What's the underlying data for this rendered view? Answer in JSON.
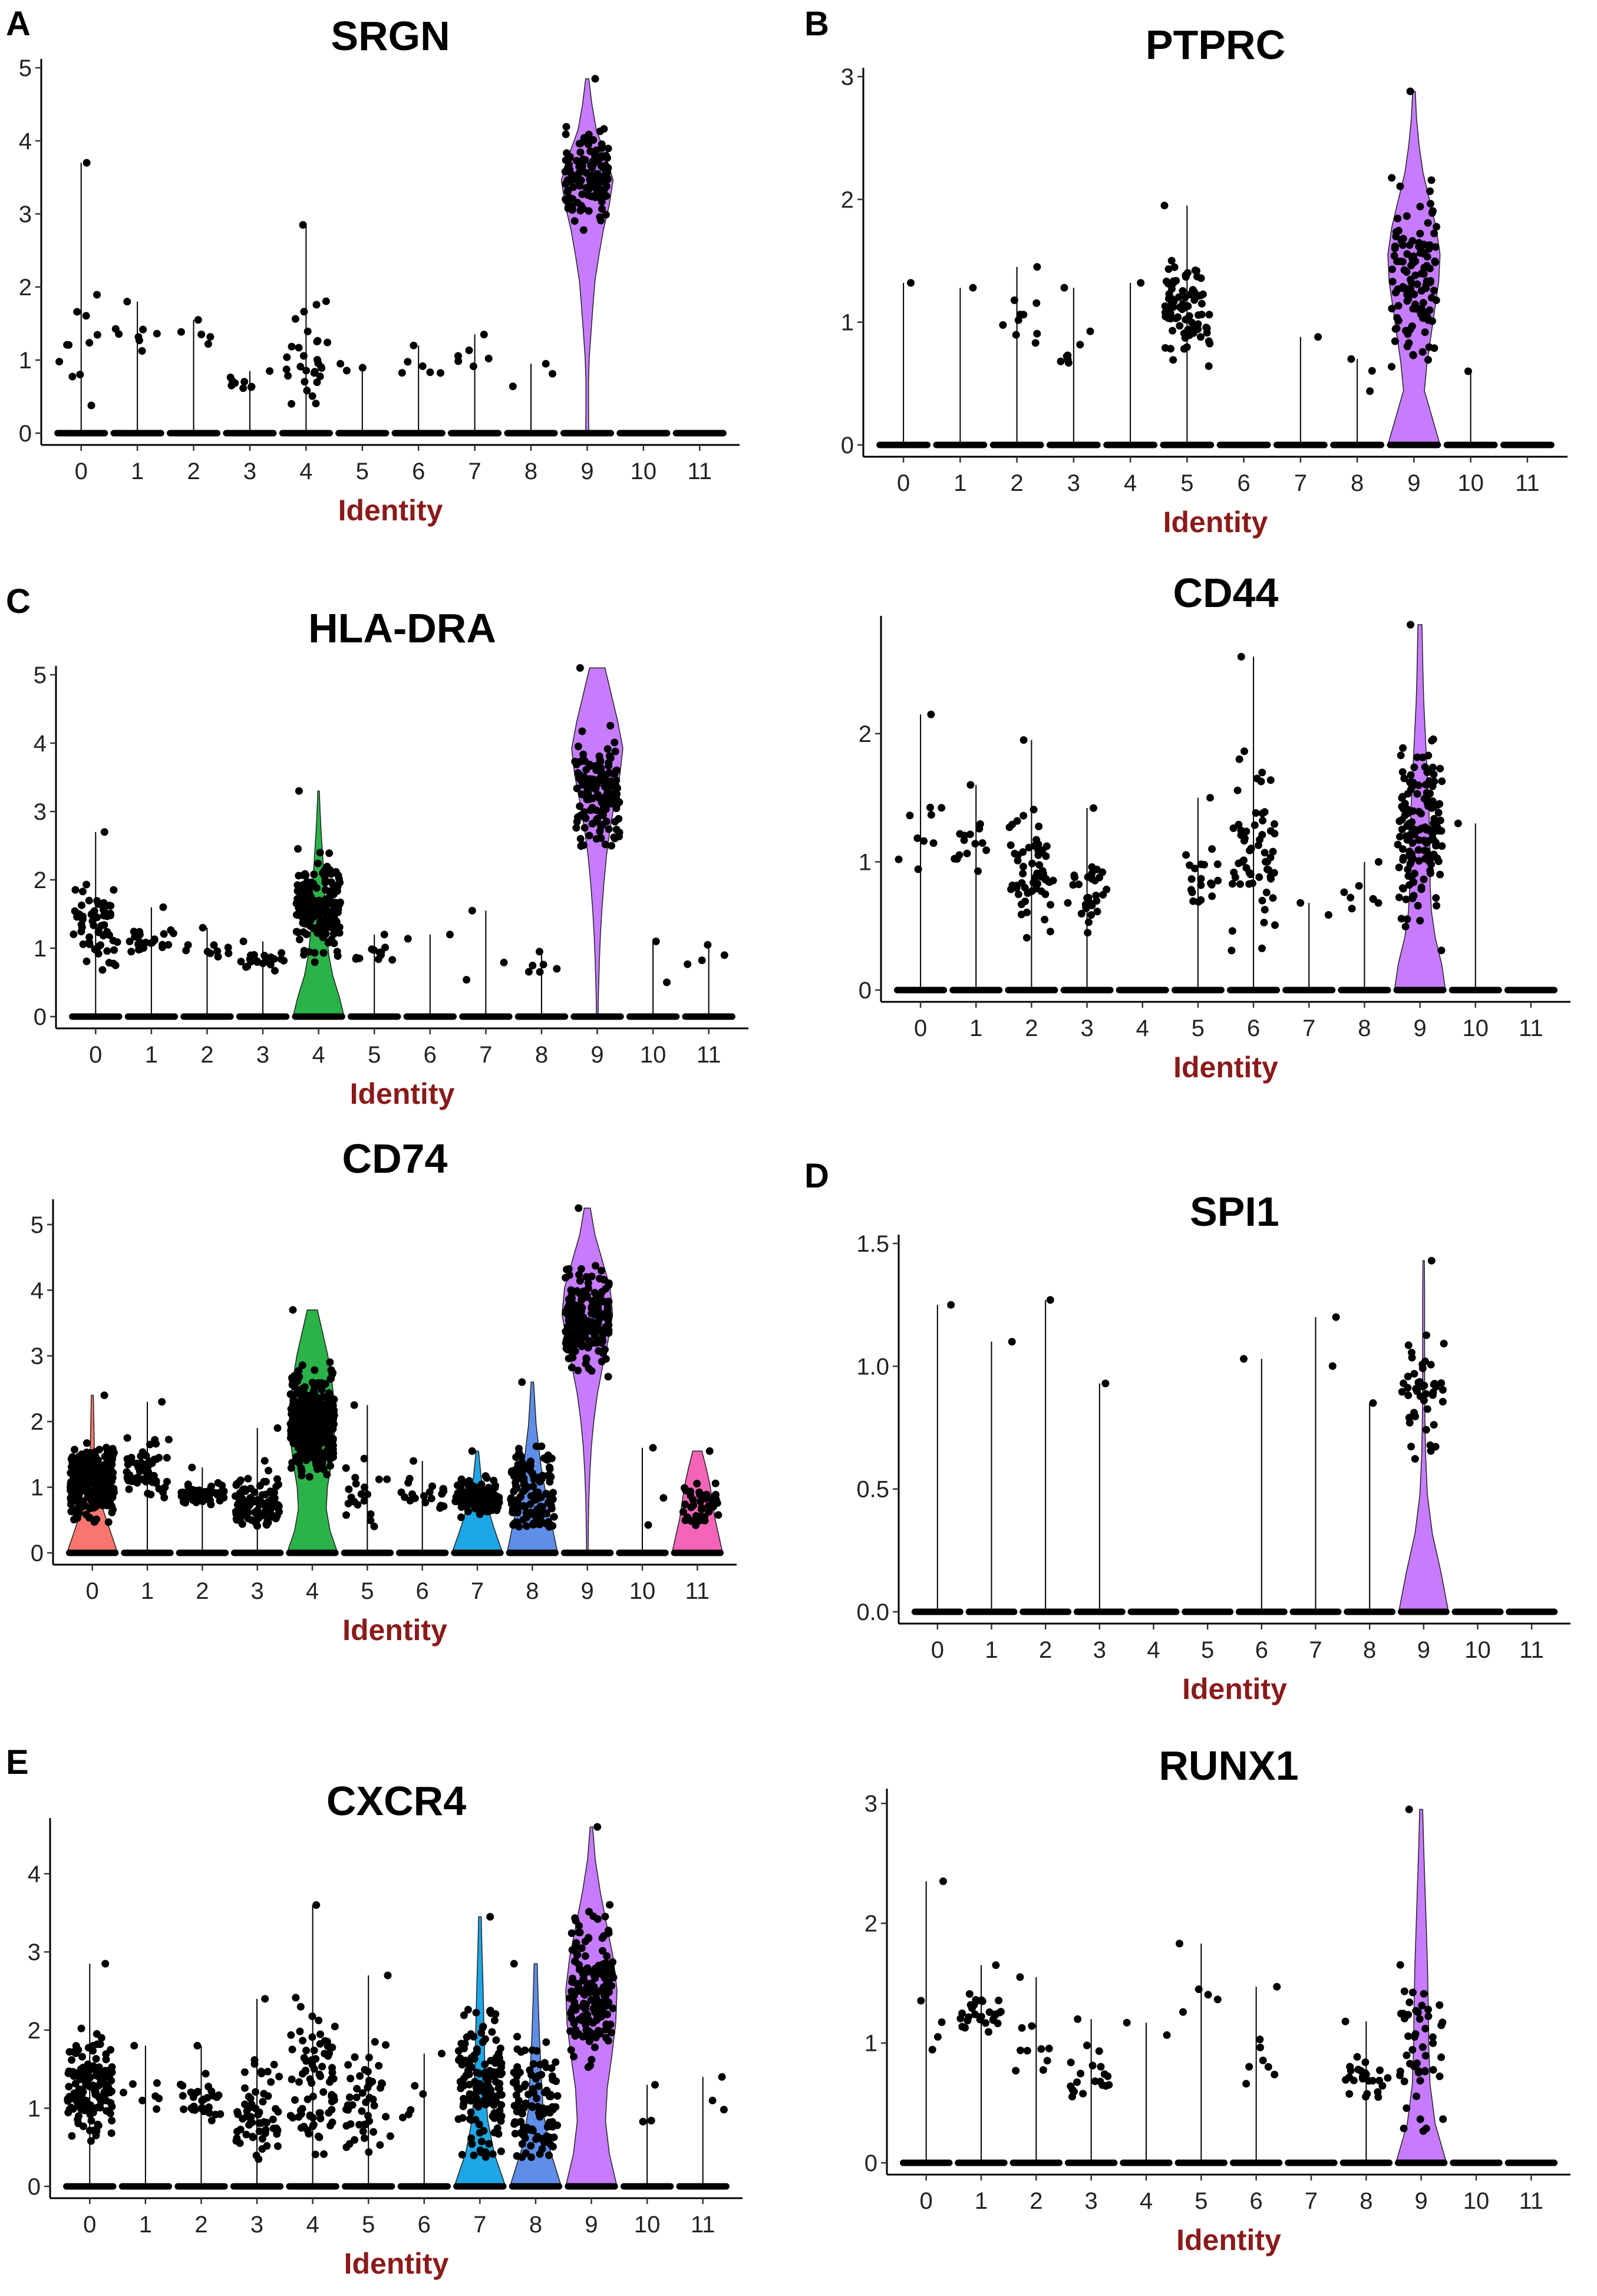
{
  "figure": {
    "panel_letters": [
      "A",
      "B",
      "C",
      "D",
      "E"
    ],
    "colors": {
      "violin_9": "#c77cff",
      "c0": "#f8766d",
      "c4": "#2bb34a",
      "c7": "#1ea7e6",
      "c8": "#5e8ee8",
      "c11": "#f564b8",
      "point": "#000000",
      "xlabel": "#8b1a1a"
    }
  },
  "chart_data": [
    {
      "gene": "SRGN",
      "type": "violin",
      "panel_letter": "A",
      "title": "SRGN",
      "xlabel": "Identity",
      "categories": [
        "0",
        "1",
        "2",
        "3",
        "4",
        "5",
        "6",
        "7",
        "8",
        "9",
        "10",
        "11"
      ],
      "ylim": [
        0,
        5
      ],
      "yticks": [
        "0",
        "1",
        "2",
        "3",
        "4",
        "5"
      ],
      "max_values": [
        3.7,
        1.8,
        1.55,
        0.85,
        2.85,
        0.95,
        1.2,
        1.35,
        0.95,
        4.85,
        0,
        0
      ],
      "nonzero_points": [
        12,
        8,
        5,
        9,
        30,
        3,
        6,
        6,
        3,
        130,
        0,
        0
      ],
      "typical_value": [
        1.2,
        1.3,
        1.3,
        0.7,
        0.95,
        0.9,
        0.9,
        1.0,
        0.7,
        3.5,
        0,
        0
      ],
      "violins": [
        {
          "category": "9",
          "color_key": "violin_9",
          "shape": [
            0.06,
            0.05,
            0.05,
            0.08,
            0.15,
            0.22,
            0.3,
            0.45,
            0.62,
            0.85,
            1.0,
            0.7,
            0.35,
            0.18,
            0.06
          ]
        }
      ]
    },
    {
      "gene": "PTPRC",
      "type": "violin",
      "panel_letter": "B",
      "title": "PTPRC",
      "xlabel": "Identity",
      "categories": [
        "0",
        "1",
        "2",
        "3",
        "4",
        "5",
        "6",
        "7",
        "8",
        "9",
        "10",
        "11"
      ],
      "ylim": [
        0,
        3
      ],
      "yticks": [
        "0",
        "1",
        "2",
        "3"
      ],
      "max_values": [
        1.32,
        1.28,
        1.45,
        1.28,
        1.32,
        1.95,
        0,
        0.88,
        0.7,
        2.88,
        0.6,
        0
      ],
      "nonzero_points": [
        1,
        1,
        10,
        8,
        1,
        80,
        0,
        1,
        3,
        120,
        1,
        0
      ],
      "typical_value": [
        1.32,
        1.28,
        0.95,
        0.75,
        1.32,
        1.1,
        0,
        0.88,
        0.5,
        1.4,
        0.6,
        0
      ],
      "violins": [
        {
          "category": "9",
          "color_key": "violin_9",
          "shape": [
            1.0,
            0.7,
            0.4,
            0.5,
            0.65,
            0.8,
            0.95,
            1.0,
            0.85,
            0.6,
            0.35,
            0.2,
            0.1,
            0.05
          ]
        }
      ]
    },
    {
      "gene": "HLA-DRA",
      "type": "violin",
      "panel_letter": "C",
      "title": "HLA-DRA",
      "xlabel": "Identity",
      "categories": [
        "0",
        "1",
        "2",
        "3",
        "4",
        "5",
        "6",
        "7",
        "8",
        "9",
        "10",
        "11"
      ],
      "ylim": [
        0,
        5
      ],
      "yticks": [
        "0",
        "1",
        "2",
        "3",
        "4",
        "5"
      ],
      "max_values": [
        2.7,
        1.6,
        1.3,
        1.1,
        3.3,
        1.2,
        1.2,
        1.55,
        0.95,
        5.1,
        1.1,
        1.05
      ],
      "nonzero_points": [
        60,
        25,
        10,
        20,
        200,
        12,
        2,
        3,
        6,
        150,
        2,
        4
      ],
      "typical_value": [
        1.3,
        1.1,
        1.0,
        0.8,
        1.6,
        0.9,
        1.2,
        0.7,
        0.7,
        3.3,
        0.6,
        0.8
      ],
      "violins": [
        {
          "category": "4",
          "color_key": "c4",
          "shape": [
            1.0,
            0.8,
            0.55,
            0.4,
            0.32,
            0.28,
            0.24,
            0.2,
            0.15,
            0.1,
            0.06,
            0.03
          ]
        },
        {
          "category": "9",
          "color_key": "violin_9",
          "shape": [
            0.03,
            0.05,
            0.08,
            0.12,
            0.18,
            0.26,
            0.36,
            0.5,
            0.68,
            0.88,
            1.0,
            0.8,
            0.55,
            0.3
          ]
        }
      ]
    },
    {
      "gene": "CD44",
      "type": "violin",
      "panel_letter": "",
      "title": "CD44",
      "xlabel": "Identity",
      "categories": [
        "0",
        "1",
        "2",
        "3",
        "4",
        "5",
        "6",
        "7",
        "8",
        "9",
        "10",
        "11"
      ],
      "ylim": [
        0,
        2.85
      ],
      "yticks": [
        "0",
        "1",
        "2"
      ],
      "max_values": [
        2.15,
        1.6,
        1.95,
        1.42,
        0,
        1.5,
        2.6,
        0.68,
        1.0,
        2.85,
        1.3,
        0
      ],
      "nonzero_points": [
        10,
        15,
        60,
        30,
        0,
        20,
        60,
        2,
        8,
        150,
        1,
        0
      ],
      "typical_value": [
        1.1,
        1.1,
        0.95,
        0.75,
        0,
        0.9,
        1.05,
        0.66,
        0.7,
        1.2,
        1.3,
        0
      ],
      "violins": [
        {
          "category": "9",
          "color_key": "violin_9",
          "shape": [
            1.0,
            0.85,
            0.6,
            0.45,
            0.4,
            0.4,
            0.38,
            0.35,
            0.3,
            0.25,
            0.2,
            0.15,
            0.12,
            0.1,
            0.08
          ]
        }
      ]
    },
    {
      "gene": "CD74",
      "type": "violin",
      "panel_letter": "",
      "title": "CD74",
      "xlabel": "Identity",
      "categories": [
        "0",
        "1",
        "2",
        "3",
        "4",
        "5",
        "6",
        "7",
        "8",
        "9",
        "10",
        "11"
      ],
      "ylim": [
        0,
        5.25
      ],
      "yticks": [
        "0",
        "1",
        "2",
        "3",
        "4",
        "5"
      ],
      "max_values": [
        2.4,
        2.3,
        1.3,
        1.9,
        3.7,
        2.25,
        1.4,
        1.55,
        2.6,
        5.25,
        1.6,
        1.55
      ],
      "nonzero_points": [
        300,
        60,
        50,
        90,
        400,
        20,
        20,
        110,
        120,
        200,
        3,
        40
      ],
      "typical_value": [
        1.1,
        1.3,
        0.9,
        0.8,
        2.0,
        0.9,
        0.9,
        0.85,
        0.85,
        3.5,
        0.7,
        0.7
      ],
      "violins": [
        {
          "category": "0",
          "color_key": "c0",
          "shape": [
            1.0,
            0.3,
            0.08,
            0.04
          ]
        },
        {
          "category": "4",
          "color_key": "c4",
          "shape": [
            1.0,
            0.7,
            0.55,
            0.6,
            0.75,
            0.85,
            0.9,
            0.85,
            0.75,
            0.6,
            0.4,
            0.2
          ]
        },
        {
          "category": "7",
          "color_key": "c7",
          "shape": [
            1.0,
            0.65,
            0.35,
            0.15,
            0.05
          ]
        },
        {
          "category": "8",
          "color_key": "c8",
          "shape": [
            1.0,
            0.65,
            0.35,
            0.15,
            0.05
          ]
        },
        {
          "category": "9",
          "color_key": "violin_9",
          "shape": [
            0.03,
            0.04,
            0.06,
            0.1,
            0.16,
            0.26,
            0.4,
            0.6,
            0.82,
            1.0,
            0.9,
            0.6,
            0.3,
            0.12
          ]
        },
        {
          "category": "11",
          "color_key": "c11",
          "shape": [
            1.0,
            0.85,
            0.7,
            0.6,
            0.5,
            0.35,
            0.18
          ]
        }
      ]
    },
    {
      "gene": "SPI1",
      "type": "violin",
      "panel_letter": "D",
      "title": "SPI1",
      "xlabel": "Identity",
      "categories": [
        "0",
        "1",
        "2",
        "3",
        "4",
        "5",
        "6",
        "7",
        "8",
        "9",
        "10",
        "11"
      ],
      "ylim": [
        0,
        1.5
      ],
      "yticks": [
        "0.0",
        "0.5",
        "1.0",
        "1.5"
      ],
      "max_values": [
        1.25,
        1.1,
        1.27,
        0.93,
        0,
        0,
        1.03,
        1.2,
        0.85,
        1.43,
        0,
        0
      ],
      "nonzero_points": [
        1,
        1,
        1,
        1,
        0,
        0,
        1,
        2,
        1,
        45,
        0,
        0
      ],
      "typical_value": [
        1.25,
        1.1,
        1.27,
        0.93,
        0,
        0,
        1.03,
        1.0,
        0.85,
        0.85,
        0,
        0
      ],
      "violins": [
        {
          "category": "9",
          "color_key": "violin_9",
          "shape": [
            1.0,
            0.7,
            0.35,
            0.15,
            0.08,
            0.05,
            0.04,
            0.04,
            0.04,
            0.03
          ]
        }
      ]
    },
    {
      "gene": "CXCR4",
      "type": "violin",
      "panel_letter": "E",
      "title": "CXCR4",
      "xlabel": "Identity",
      "categories": [
        "0",
        "1",
        "2",
        "3",
        "4",
        "5",
        "6",
        "7",
        "8",
        "9",
        "10",
        "11"
      ],
      "ylim": [
        0,
        4.6
      ],
      "yticks": [
        "0",
        "1",
        "2",
        "3",
        "4"
      ],
      "max_values": [
        2.85,
        1.8,
        1.8,
        2.4,
        3.6,
        2.7,
        1.7,
        3.45,
        2.85,
        4.6,
        1.3,
        1.4
      ],
      "nonzero_points": [
        150,
        8,
        30,
        60,
        80,
        50,
        6,
        150,
        110,
        180,
        3,
        3
      ],
      "typical_value": [
        1.3,
        1.2,
        1.1,
        0.9,
        1.3,
        1.1,
        1.0,
        1.3,
        1.0,
        2.5,
        0.8,
        1.0
      ],
      "violins": [
        {
          "category": "7",
          "color_key": "c7",
          "shape": [
            1.0,
            0.55,
            0.3,
            0.22,
            0.18,
            0.15,
            0.12,
            0.08,
            0.05
          ]
        },
        {
          "category": "8",
          "color_key": "c8",
          "shape": [
            1.0,
            0.55,
            0.3,
            0.22,
            0.15,
            0.1,
            0.06
          ]
        },
        {
          "category": "9",
          "color_key": "violin_9",
          "shape": [
            1.0,
            0.7,
            0.55,
            0.62,
            0.8,
            0.95,
            1.0,
            0.85,
            0.6,
            0.35,
            0.15,
            0.05
          ]
        }
      ]
    },
    {
      "gene": "RUNX1",
      "type": "violin",
      "panel_letter": "",
      "title": "RUNX1",
      "xlabel": "Identity",
      "categories": [
        "0",
        "1",
        "2",
        "3",
        "4",
        "5",
        "6",
        "7",
        "8",
        "9",
        "10",
        "11"
      ],
      "ylim": [
        0,
        3.05
      ],
      "yticks": [
        "0",
        "1",
        "2",
        "3"
      ],
      "max_values": [
        2.35,
        1.65,
        1.55,
        1.2,
        1.17,
        1.83,
        1.47,
        0,
        1.18,
        2.95,
        0,
        0
      ],
      "nonzero_points": [
        5,
        30,
        10,
        20,
        2,
        5,
        8,
        0,
        25,
        50,
        0,
        0
      ],
      "typical_value": [
        1.2,
        1.25,
        0.95,
        0.7,
        1.1,
        1.3,
        0.85,
        0,
        0.7,
        1.0,
        0,
        0
      ],
      "violins": [
        {
          "category": "9",
          "color_key": "violin_9",
          "shape": [
            1.0,
            0.55,
            0.35,
            0.3,
            0.28,
            0.25,
            0.2,
            0.15,
            0.1,
            0.06
          ]
        }
      ]
    }
  ]
}
